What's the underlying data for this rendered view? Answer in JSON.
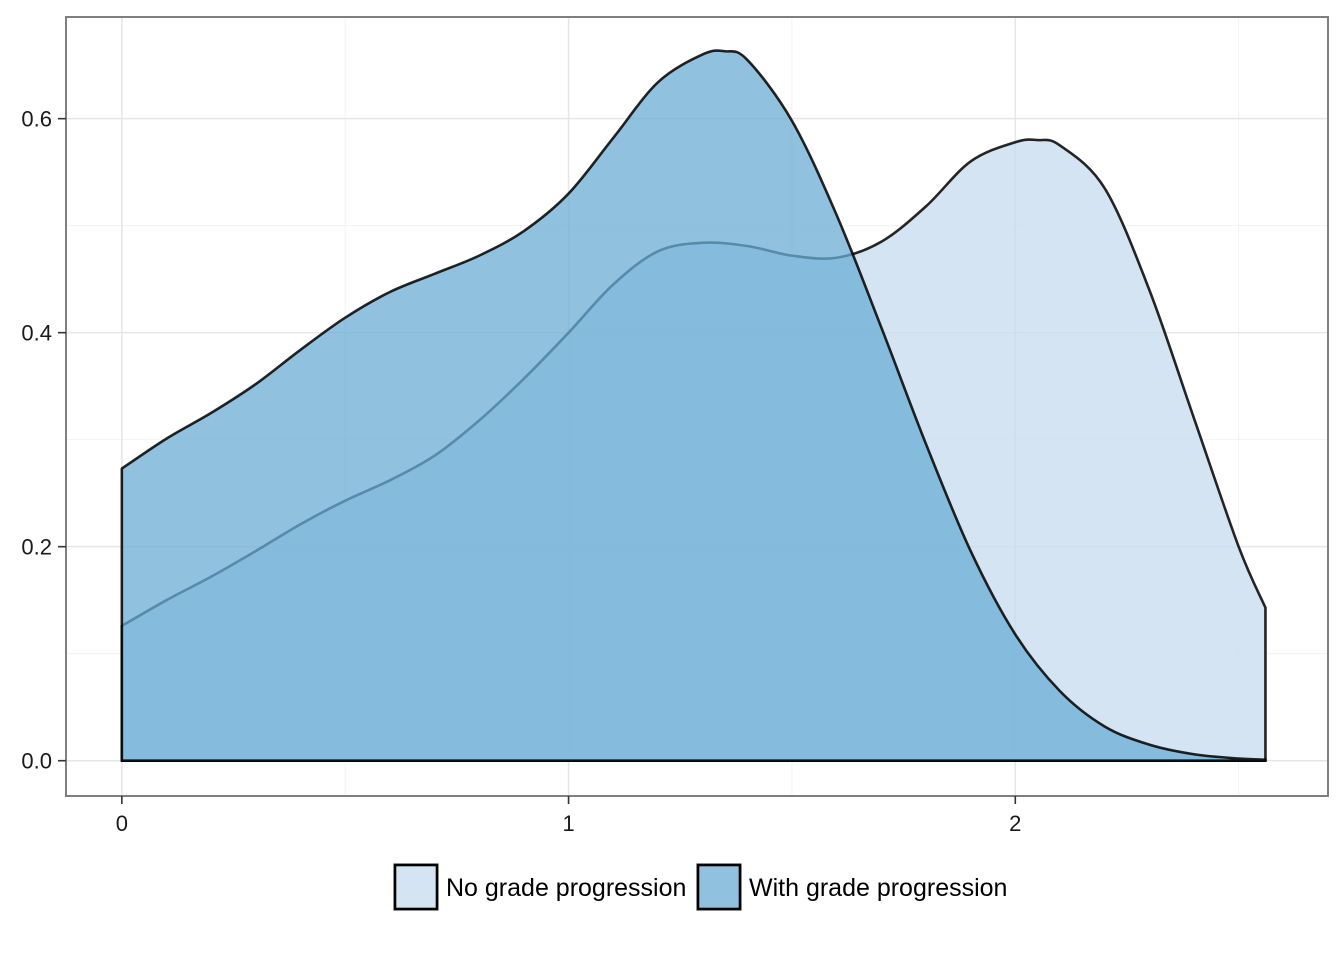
{
  "chart_data": {
    "type": "area",
    "title": "",
    "xlabel": "",
    "ylabel": "",
    "xlim": [
      -0.125,
      2.7
    ],
    "ylim": [
      -0.033,
      0.695
    ],
    "x_ticks": [
      0,
      1,
      2
    ],
    "x_tick_labels": [
      "0",
      "1",
      "2"
    ],
    "y_ticks": [
      0.0,
      0.2,
      0.4,
      0.6
    ],
    "y_tick_labels": [
      "0.0",
      "0.2",
      "0.4",
      "0.6"
    ],
    "grid": true,
    "legend_position": "bottom",
    "series": [
      {
        "name": "No grade progression",
        "fill": "#c6dbef",
        "x": [
          0.0,
          0.1,
          0.2,
          0.3,
          0.4,
          0.5,
          0.6,
          0.7,
          0.8,
          0.9,
          1.0,
          1.1,
          1.2,
          1.3,
          1.4,
          1.5,
          1.6,
          1.7,
          1.8,
          1.9,
          2.0,
          2.05,
          2.1,
          2.2,
          2.3,
          2.4,
          2.5,
          2.56
        ],
        "y": [
          0.126,
          0.15,
          0.172,
          0.196,
          0.221,
          0.243,
          0.262,
          0.285,
          0.318,
          0.357,
          0.4,
          0.445,
          0.476,
          0.484,
          0.481,
          0.472,
          0.47,
          0.485,
          0.518,
          0.56,
          0.578,
          0.58,
          0.575,
          0.535,
          0.44,
          0.32,
          0.2,
          0.143
        ]
      },
      {
        "name": "With grade progression",
        "fill": "#6baed6",
        "x": [
          0.0,
          0.1,
          0.2,
          0.3,
          0.4,
          0.5,
          0.6,
          0.7,
          0.8,
          0.9,
          1.0,
          1.1,
          1.2,
          1.3,
          1.35,
          1.4,
          1.5,
          1.6,
          1.7,
          1.8,
          1.9,
          2.0,
          2.1,
          2.2,
          2.3,
          2.4,
          2.5,
          2.56
        ],
        "y": [
          0.273,
          0.301,
          0.325,
          0.352,
          0.384,
          0.414,
          0.438,
          0.455,
          0.472,
          0.495,
          0.53,
          0.582,
          0.634,
          0.66,
          0.663,
          0.655,
          0.598,
          0.51,
          0.405,
          0.296,
          0.196,
          0.118,
          0.065,
          0.032,
          0.015,
          0.006,
          0.002,
          0.001
        ]
      }
    ]
  }
}
